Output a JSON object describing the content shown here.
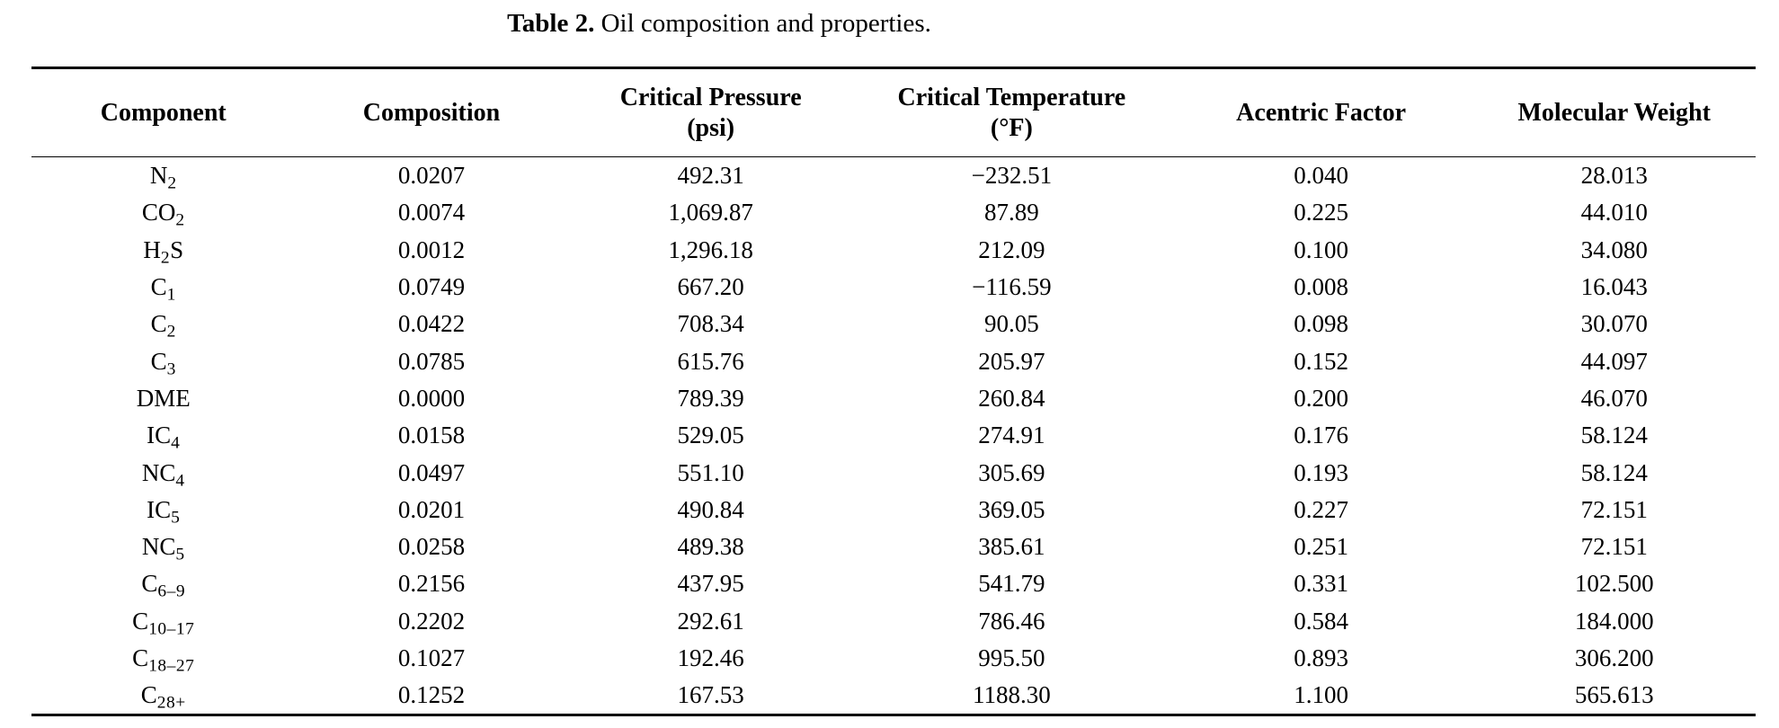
{
  "page": {
    "background_color": "#ffffff",
    "text_color": "#000000"
  },
  "caption": {
    "label": "Table 2.",
    "text": "Oil composition and properties."
  },
  "table": {
    "columns": [
      {
        "label": "Component",
        "unit": ""
      },
      {
        "label": "Composition",
        "unit": ""
      },
      {
        "label": "Critical Pressure",
        "unit": "(psi)"
      },
      {
        "label": "Critical Temperature",
        "unit": "(°F)"
      },
      {
        "label": "Acentric Factor",
        "unit": ""
      },
      {
        "label": "Molecular Weight",
        "unit": ""
      }
    ],
    "rows": [
      {
        "component": "N_{2}",
        "composition": "0.0207",
        "critical_pressure_psi": "492.31",
        "critical_temperature_f": "−232.51",
        "acentric_factor": "0.040",
        "molecular_weight": "28.013"
      },
      {
        "component": "CO_{2}",
        "composition": "0.0074",
        "critical_pressure_psi": "1,069.87",
        "critical_temperature_f": "87.89",
        "acentric_factor": "0.225",
        "molecular_weight": "44.010"
      },
      {
        "component": "H_{2}S",
        "composition": "0.0012",
        "critical_pressure_psi": "1,296.18",
        "critical_temperature_f": "212.09",
        "acentric_factor": "0.100",
        "molecular_weight": "34.080"
      },
      {
        "component": "C_{1}",
        "composition": "0.0749",
        "critical_pressure_psi": "667.20",
        "critical_temperature_f": "−116.59",
        "acentric_factor": "0.008",
        "molecular_weight": "16.043"
      },
      {
        "component": "C_{2}",
        "composition": "0.0422",
        "critical_pressure_psi": "708.34",
        "critical_temperature_f": "90.05",
        "acentric_factor": "0.098",
        "molecular_weight": "30.070"
      },
      {
        "component": "C_{3}",
        "composition": "0.0785",
        "critical_pressure_psi": "615.76",
        "critical_temperature_f": "205.97",
        "acentric_factor": "0.152",
        "molecular_weight": "44.097"
      },
      {
        "component": "DME",
        "composition": "0.0000",
        "critical_pressure_psi": "789.39",
        "critical_temperature_f": "260.84",
        "acentric_factor": "0.200",
        "molecular_weight": "46.070"
      },
      {
        "component": "IC_{4}",
        "composition": "0.0158",
        "critical_pressure_psi": "529.05",
        "critical_temperature_f": "274.91",
        "acentric_factor": "0.176",
        "molecular_weight": "58.124"
      },
      {
        "component": "NC_{4}",
        "composition": "0.0497",
        "critical_pressure_psi": "551.10",
        "critical_temperature_f": "305.69",
        "acentric_factor": "0.193",
        "molecular_weight": "58.124"
      },
      {
        "component": "IC_{5}",
        "composition": "0.0201",
        "critical_pressure_psi": "490.84",
        "critical_temperature_f": "369.05",
        "acentric_factor": "0.227",
        "molecular_weight": "72.151"
      },
      {
        "component": "NC_{5}",
        "composition": "0.0258",
        "critical_pressure_psi": "489.38",
        "critical_temperature_f": "385.61",
        "acentric_factor": "0.251",
        "molecular_weight": "72.151"
      },
      {
        "component": "C_{6–9}",
        "composition": "0.2156",
        "critical_pressure_psi": "437.95",
        "critical_temperature_f": "541.79",
        "acentric_factor": "0.331",
        "molecular_weight": "102.500"
      },
      {
        "component": "C_{10–17}",
        "composition": "0.2202",
        "critical_pressure_psi": "292.61",
        "critical_temperature_f": "786.46",
        "acentric_factor": "0.584",
        "molecular_weight": "184.000"
      },
      {
        "component": "C_{18–27}",
        "composition": "0.1027",
        "critical_pressure_psi": "192.46",
        "critical_temperature_f": "995.50",
        "acentric_factor": "0.893",
        "molecular_weight": "306.200"
      },
      {
        "component": "C_{28+}",
        "composition": "0.1252",
        "critical_pressure_psi": "167.53",
        "critical_temperature_f": "1188.30",
        "acentric_factor": "1.100",
        "molecular_weight": "565.613"
      }
    ]
  }
}
